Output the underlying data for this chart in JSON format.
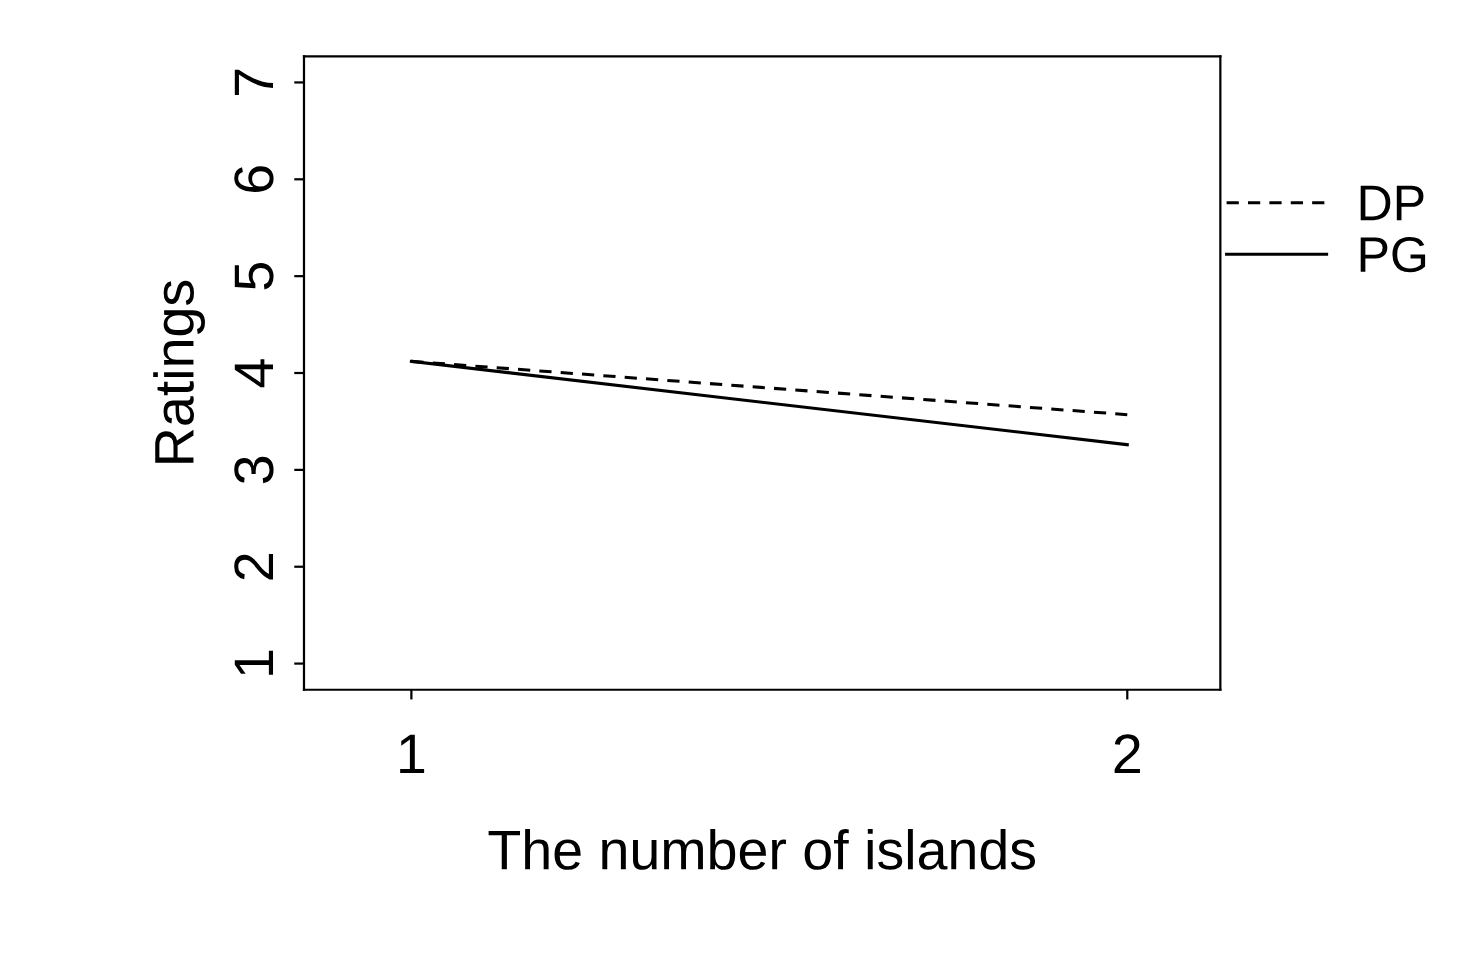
{
  "chart_data": {
    "type": "line",
    "xlabel": "The number of islands",
    "ylabel": "Ratings",
    "x": [
      1,
      2
    ],
    "xlim": [
      0.85,
      2.13
    ],
    "xticks": [
      1,
      2
    ],
    "ylim": [
      0.73,
      7.27
    ],
    "yticks": [
      1,
      2,
      3,
      4,
      5,
      6,
      7
    ],
    "grid": false,
    "legend": "right",
    "marker": "none",
    "series": [
      {
        "name": "DP",
        "color": "#000000",
        "line_style": "dashed",
        "values": [
          4.12,
          3.57
        ]
      },
      {
        "name": "PG",
        "color": "#000000",
        "line_style": "solid",
        "values": [
          4.12,
          3.26
        ]
      }
    ]
  }
}
